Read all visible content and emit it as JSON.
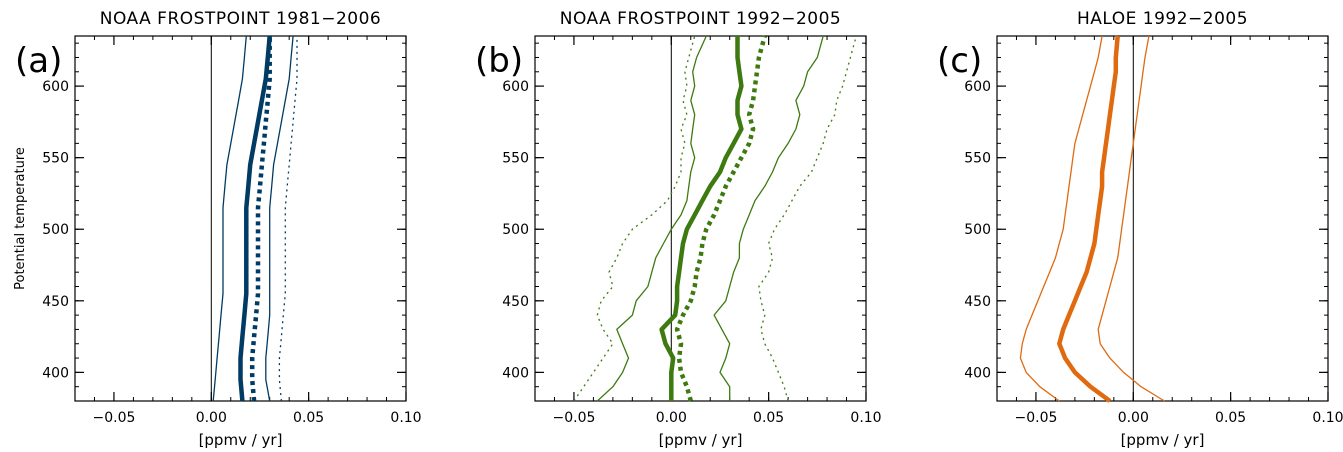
{
  "chart_data": [
    {
      "type": "line",
      "panel_label": "(a)",
      "title": "NOAA FROSTPOINT 1981−2006",
      "xlabel": "[ppmv / yr]",
      "ylabel": "Potential temperature",
      "xlim": [
        -0.07,
        0.1
      ],
      "ylim": [
        380,
        635
      ],
      "xticks": [
        -0.05,
        0.0,
        0.05,
        0.1
      ],
      "xtick_labels": [
        "−0.05",
        "0.00",
        "0.05",
        "0.10"
      ],
      "yticks": [
        400,
        450,
        500,
        550,
        600
      ],
      "ytick_labels": [
        "400",
        "450",
        "500",
        "550",
        "600"
      ],
      "color": "#003B63",
      "zero_line": true,
      "series": [
        {
          "style": "thin-solid",
          "theta": [
            380,
            395,
            410,
            425,
            440,
            455,
            470,
            485,
            500,
            515,
            530,
            545,
            560,
            575,
            590,
            605,
            620,
            635
          ],
          "values": [
            0.001,
            0.002,
            0.003,
            0.004,
            0.005,
            0.006,
            0.006,
            0.006,
            0.006,
            0.006,
            0.007,
            0.008,
            0.01,
            0.012,
            0.014,
            0.016,
            0.017,
            0.018
          ]
        },
        {
          "style": "thick-solid",
          "theta": [
            380,
            395,
            410,
            425,
            440,
            455,
            470,
            485,
            500,
            515,
            530,
            545,
            560,
            575,
            590,
            605,
            620,
            635
          ],
          "values": [
            0.016,
            0.015,
            0.015,
            0.016,
            0.017,
            0.018,
            0.018,
            0.018,
            0.018,
            0.018,
            0.019,
            0.02,
            0.022,
            0.024,
            0.026,
            0.028,
            0.029,
            0.03
          ]
        },
        {
          "style": "thick-dotted",
          "theta": [
            380,
            395,
            410,
            425,
            440,
            455,
            470,
            485,
            500,
            515,
            530,
            545,
            560,
            575,
            590,
            605,
            620,
            635
          ],
          "values": [
            0.022,
            0.021,
            0.021,
            0.022,
            0.023,
            0.024,
            0.024,
            0.024,
            0.024,
            0.024,
            0.025,
            0.026,
            0.027,
            0.028,
            0.029,
            0.03,
            0.03,
            0.03
          ]
        },
        {
          "style": "thin-solid",
          "theta": [
            380,
            395,
            410,
            425,
            440,
            455,
            470,
            485,
            500,
            515,
            530,
            545,
            560,
            575,
            590,
            605,
            620,
            635
          ],
          "values": [
            0.03,
            0.028,
            0.028,
            0.029,
            0.03,
            0.03,
            0.03,
            0.03,
            0.03,
            0.03,
            0.031,
            0.032,
            0.034,
            0.036,
            0.038,
            0.04,
            0.041,
            0.042
          ]
        },
        {
          "style": "thin-dotted",
          "theta": [
            380,
            395,
            410,
            425,
            440,
            455,
            470,
            485,
            500,
            515,
            530,
            545,
            560,
            575,
            590,
            605,
            620,
            635
          ],
          "values": [
            0.036,
            0.035,
            0.035,
            0.036,
            0.037,
            0.038,
            0.038,
            0.038,
            0.038,
            0.038,
            0.039,
            0.04,
            0.041,
            0.042,
            0.043,
            0.044,
            0.044,
            0.044
          ]
        }
      ]
    },
    {
      "type": "line",
      "panel_label": "(b)",
      "title": "NOAA FROSTPOINT 1992−2005",
      "xlabel": "[ppmv / yr]",
      "ylabel": "",
      "xlim": [
        -0.07,
        0.1
      ],
      "ylim": [
        380,
        635
      ],
      "xticks": [
        -0.05,
        0.0,
        0.05,
        0.1
      ],
      "xtick_labels": [
        "−0.05",
        "0.00",
        "0.05",
        "0.10"
      ],
      "yticks": [
        400,
        450,
        500,
        550,
        600
      ],
      "ytick_labels": [
        "400",
        "450",
        "500",
        "550",
        "600"
      ],
      "color": "#3D7A10",
      "zero_line": true,
      "series": [
        {
          "style": "thin-dotted",
          "theta": [
            380,
            390,
            400,
            410,
            420,
            430,
            440,
            450,
            460,
            470,
            480,
            490,
            500,
            510,
            520,
            530,
            540,
            550,
            560,
            570,
            580,
            590,
            600,
            610,
            620,
            635
          ],
          "values": [
            -0.05,
            -0.045,
            -0.04,
            -0.035,
            -0.03,
            -0.035,
            -0.038,
            -0.036,
            -0.03,
            -0.032,
            -0.028,
            -0.025,
            -0.02,
            -0.01,
            -0.002,
            0.002,
            0.005,
            0.005,
            0.007,
            0.005,
            0.008,
            0.006,
            0.008,
            0.007,
            0.009,
            0.012
          ]
        },
        {
          "style": "thin-solid",
          "theta": [
            380,
            390,
            400,
            410,
            420,
            430,
            440,
            450,
            460,
            470,
            480,
            490,
            500,
            510,
            520,
            530,
            540,
            550,
            560,
            570,
            580,
            590,
            600,
            610,
            620,
            635
          ],
          "values": [
            -0.038,
            -0.03,
            -0.025,
            -0.022,
            -0.025,
            -0.028,
            -0.02,
            -0.018,
            -0.012,
            -0.01,
            -0.008,
            -0.004,
            0.0,
            0.005,
            0.008,
            0.009,
            0.01,
            0.012,
            0.01,
            0.011,
            0.012,
            0.01,
            0.012,
            0.011,
            0.013,
            0.018
          ]
        },
        {
          "style": "thick-solid",
          "theta": [
            380,
            390,
            400,
            410,
            420,
            430,
            440,
            450,
            460,
            470,
            480,
            490,
            500,
            510,
            520,
            530,
            540,
            550,
            560,
            570,
            580,
            590,
            600,
            610,
            620,
            635
          ],
          "values": [
            0.0,
            0.0,
            0.0,
            0.001,
            -0.003,
            -0.005,
            0.002,
            0.003,
            0.003,
            0.004,
            0.005,
            0.006,
            0.008,
            0.012,
            0.016,
            0.02,
            0.025,
            0.028,
            0.032,
            0.036,
            0.034,
            0.034,
            0.036,
            0.035,
            0.034,
            0.034
          ]
        },
        {
          "style": "thick-dotted",
          "theta": [
            380,
            390,
            400,
            410,
            420,
            430,
            440,
            450,
            460,
            470,
            480,
            490,
            500,
            510,
            520,
            530,
            540,
            550,
            560,
            570,
            580,
            590,
            600,
            610,
            620,
            635
          ],
          "values": [
            0.01,
            0.008,
            0.005,
            0.004,
            0.005,
            0.003,
            0.006,
            0.01,
            0.012,
            0.013,
            0.015,
            0.016,
            0.018,
            0.022,
            0.025,
            0.028,
            0.032,
            0.036,
            0.04,
            0.042,
            0.04,
            0.042,
            0.043,
            0.044,
            0.045,
            0.048
          ]
        },
        {
          "style": "thin-solid",
          "theta": [
            380,
            390,
            400,
            410,
            420,
            430,
            440,
            450,
            460,
            470,
            480,
            490,
            500,
            510,
            520,
            530,
            540,
            550,
            560,
            570,
            580,
            590,
            600,
            610,
            620,
            635
          ],
          "values": [
            0.03,
            0.03,
            0.025,
            0.028,
            0.03,
            0.026,
            0.022,
            0.028,
            0.03,
            0.032,
            0.035,
            0.035,
            0.037,
            0.04,
            0.043,
            0.048,
            0.052,
            0.055,
            0.06,
            0.064,
            0.066,
            0.064,
            0.068,
            0.07,
            0.075,
            0.078
          ]
        },
        {
          "style": "thin-dotted",
          "theta": [
            380,
            390,
            400,
            410,
            420,
            430,
            440,
            450,
            460,
            470,
            480,
            490,
            500,
            510,
            520,
            530,
            540,
            550,
            560,
            570,
            580,
            590,
            600,
            610,
            620,
            635
          ],
          "values": [
            0.06,
            0.058,
            0.055,
            0.052,
            0.048,
            0.046,
            0.048,
            0.046,
            0.045,
            0.05,
            0.052,
            0.05,
            0.053,
            0.058,
            0.062,
            0.066,
            0.072,
            0.075,
            0.078,
            0.08,
            0.084,
            0.085,
            0.088,
            0.09,
            0.092,
            0.095
          ]
        }
      ]
    },
    {
      "type": "line",
      "panel_label": "(c)",
      "title": "HALOE 1992−2005",
      "xlabel": "[ppmv / yr]",
      "ylabel": "",
      "xlim": [
        -0.07,
        0.1
      ],
      "ylim": [
        380,
        635
      ],
      "xticks": [
        -0.05,
        0.0,
        0.05,
        0.1
      ],
      "xtick_labels": [
        "−0.05",
        "0.00",
        "0.05",
        "0.10"
      ],
      "yticks": [
        400,
        450,
        500,
        550,
        600
      ],
      "ytick_labels": [
        "400",
        "450",
        "500",
        "550",
        "600"
      ],
      "color": "#E06A10",
      "zero_line": true,
      "series": [
        {
          "style": "thin-solid",
          "theta": [
            380,
            390,
            400,
            410,
            420,
            430,
            440,
            450,
            460,
            470,
            480,
            490,
            500,
            510,
            520,
            530,
            540,
            550,
            560,
            570,
            580,
            590,
            600,
            610,
            620,
            635
          ],
          "values": [
            -0.038,
            -0.048,
            -0.055,
            -0.058,
            -0.057,
            -0.055,
            -0.052,
            -0.049,
            -0.046,
            -0.043,
            -0.04,
            -0.038,
            -0.036,
            -0.035,
            -0.034,
            -0.033,
            -0.032,
            -0.031,
            -0.03,
            -0.028,
            -0.026,
            -0.024,
            -0.022,
            -0.02,
            -0.018,
            -0.016
          ]
        },
        {
          "style": "thick-solid",
          "theta": [
            380,
            390,
            400,
            410,
            420,
            430,
            440,
            450,
            460,
            470,
            480,
            490,
            500,
            510,
            520,
            530,
            540,
            550,
            560,
            570,
            580,
            590,
            600,
            610,
            620,
            635
          ],
          "values": [
            -0.012,
            -0.022,
            -0.03,
            -0.035,
            -0.038,
            -0.036,
            -0.033,
            -0.03,
            -0.027,
            -0.024,
            -0.022,
            -0.02,
            -0.019,
            -0.018,
            -0.017,
            -0.016,
            -0.016,
            -0.015,
            -0.014,
            -0.013,
            -0.012,
            -0.011,
            -0.01,
            -0.009,
            -0.009,
            -0.008
          ]
        },
        {
          "style": "thin-solid",
          "theta": [
            380,
            390,
            400,
            410,
            420,
            430,
            440,
            450,
            460,
            470,
            480,
            490,
            500,
            510,
            520,
            530,
            540,
            550,
            560,
            570,
            580,
            590,
            600,
            610,
            620,
            635
          ],
          "values": [
            0.016,
            0.004,
            -0.005,
            -0.012,
            -0.017,
            -0.018,
            -0.016,
            -0.014,
            -0.012,
            -0.01,
            -0.008,
            -0.007,
            -0.006,
            -0.005,
            -0.004,
            -0.003,
            -0.002,
            -0.001,
            0.0,
            0.001,
            0.002,
            0.003,
            0.004,
            0.005,
            0.006,
            0.008
          ]
        }
      ]
    }
  ]
}
